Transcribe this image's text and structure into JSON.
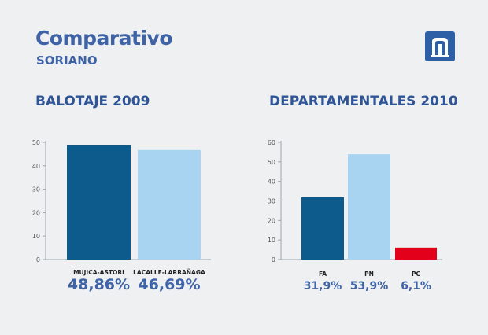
{
  "header": {
    "title": "Comparativo",
    "subtitle": "SORIANO",
    "logo_icon": "arch-logo-icon"
  },
  "colors": {
    "title": "#3e63a6",
    "FA": "#0d5a8c",
    "PN": "#a9d4f1",
    "PC": "#e2001a"
  },
  "chart_data": [
    {
      "type": "bar",
      "title": "BALOTAJE 2009",
      "categories": [
        "MUJICA-ASTORI",
        "LACALLE-LARRAÑAGA"
      ],
      "values": [
        48.86,
        46.69
      ],
      "value_labels": [
        "48,86%",
        "46,69%"
      ],
      "colors": [
        "#0d5a8c",
        "#a9d4f1"
      ],
      "ylim": [
        0,
        50
      ],
      "yticks": [
        "0",
        "10",
        "20",
        "30",
        "40",
        "50"
      ],
      "xlabel": "",
      "ylabel": ""
    },
    {
      "type": "bar",
      "title": "DEPARTAMENTALES 2010",
      "categories": [
        "FA",
        "PN",
        "PC"
      ],
      "values": [
        31.9,
        53.9,
        6.1
      ],
      "value_labels": [
        "31,9%",
        "53,9%",
        "6,1%"
      ],
      "colors": [
        "#0d5a8c",
        "#a9d4f1",
        "#e2001a"
      ],
      "ylim": [
        0,
        60
      ],
      "yticks": [
        "0",
        "10",
        "20",
        "30",
        "40",
        "50",
        "60"
      ],
      "xlabel": "",
      "ylabel": ""
    }
  ]
}
